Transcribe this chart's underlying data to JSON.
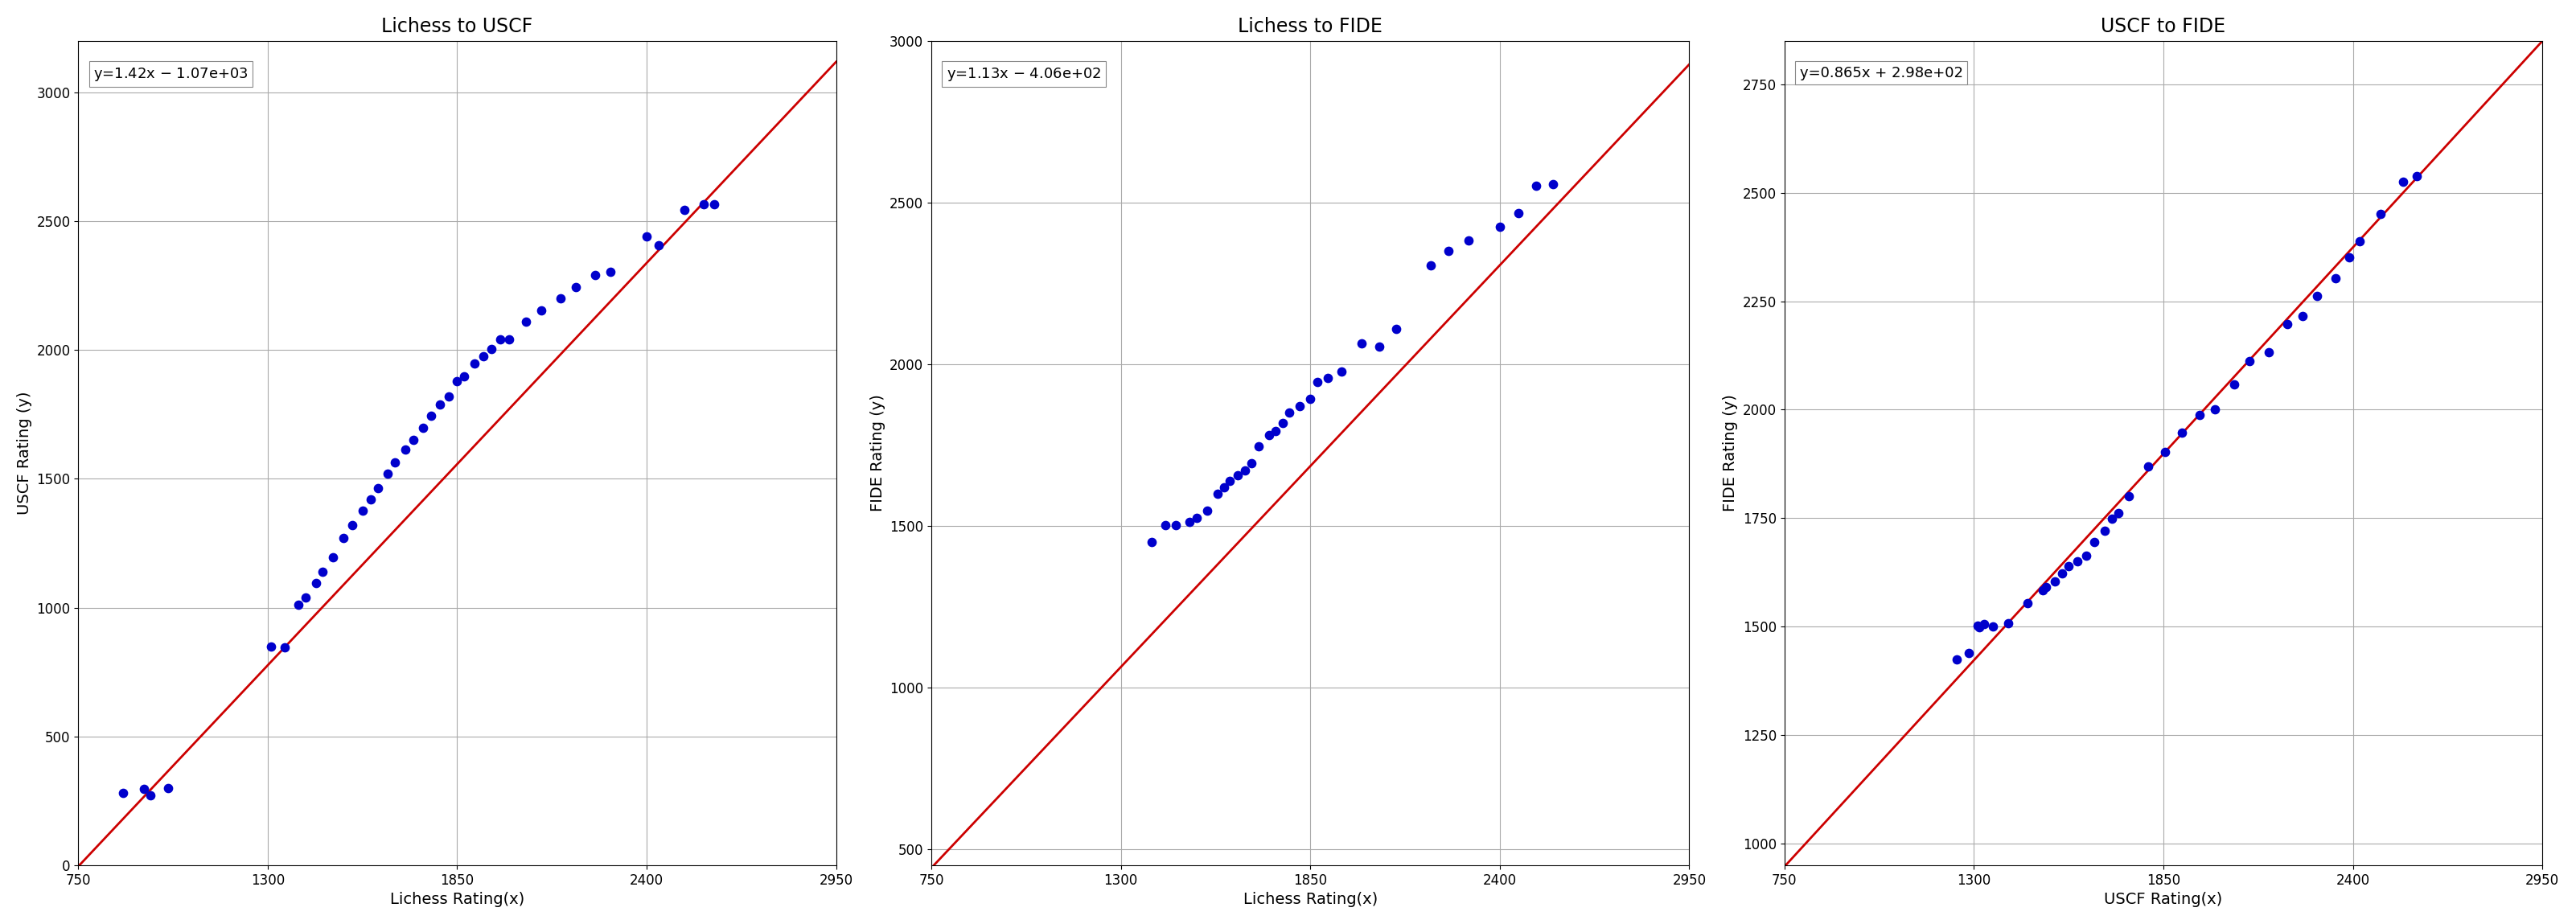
{
  "plot1": {
    "title": "Lichess to USCF",
    "xlabel": "Lichess Rating(x)",
    "ylabel": "USCF Rating (y)",
    "equation": "y=1.42x $-$ 1.07e+03",
    "slope": 1.42,
    "intercept": -1070,
    "x": [
      880,
      940,
      960,
      1010,
      1310,
      1350,
      1390,
      1410,
      1440,
      1460,
      1490,
      1520,
      1545,
      1575,
      1600,
      1620,
      1648,
      1670,
      1700,
      1722,
      1750,
      1775,
      1800,
      1825,
      1850,
      1870,
      1900,
      1925,
      1950,
      1975,
      2000,
      2050,
      2095,
      2150,
      2195,
      2250,
      2295,
      2400,
      2435,
      2510,
      2565,
      2595
    ],
    "y": [
      280,
      295,
      270,
      300,
      850,
      845,
      1010,
      1040,
      1095,
      1140,
      1195,
      1270,
      1320,
      1375,
      1420,
      1465,
      1520,
      1565,
      1615,
      1650,
      1698,
      1745,
      1790,
      1820,
      1878,
      1898,
      1948,
      1975,
      2005,
      2040,
      2040,
      2110,
      2155,
      2200,
      2245,
      2290,
      2305,
      2440,
      2408,
      2545,
      2565,
      2565
    ],
    "xlim": [
      750,
      2950
    ],
    "ylim": [
      0,
      3200
    ],
    "xticks": [
      750,
      1300,
      1850,
      2400,
      2950
    ],
    "yticks": [
      0,
      500,
      1000,
      1500,
      2000,
      2500,
      3000
    ]
  },
  "plot2": {
    "title": "Lichess to FIDE",
    "xlabel": "Lichess Rating(x)",
    "ylabel": "FIDE Rating (y)",
    "equation": "y=1.13x $-$ 4.06e+02",
    "slope": 1.13,
    "intercept": -406,
    "x": [
      1390,
      1430,
      1460,
      1500,
      1520,
      1550,
      1580,
      1600,
      1615,
      1640,
      1660,
      1680,
      1700,
      1730,
      1750,
      1770,
      1790,
      1820,
      1850,
      1870,
      1900,
      1940,
      2000,
      2050,
      2100,
      2200,
      2250,
      2310,
      2400,
      2455,
      2505,
      2555
    ],
    "y": [
      1451,
      1501,
      1503,
      1512,
      1525,
      1546,
      1599,
      1620,
      1640,
      1657,
      1672,
      1693,
      1745,
      1780,
      1793,
      1817,
      1850,
      1870,
      1892,
      1945,
      1958,
      1978,
      2065,
      2055,
      2110,
      2306,
      2351,
      2383,
      2426,
      2468,
      2553,
      2558
    ],
    "xlim": [
      750,
      2950
    ],
    "ylim": [
      450,
      3000
    ],
    "xticks": [
      750,
      1300,
      1850,
      2400,
      2950
    ],
    "yticks": [
      500,
      1000,
      1500,
      2000,
      2500,
      3000
    ]
  },
  "plot3": {
    "title": "USCF to FIDE",
    "xlabel": "USCF Rating(x)",
    "ylabel": "FIDE Rating (y)",
    "equation": "y=0.865x + 2.98e+02",
    "slope": 0.865,
    "intercept": 298,
    "x": [
      1250,
      1285,
      1310,
      1315,
      1330,
      1355,
      1400,
      1455,
      1500,
      1510,
      1535,
      1555,
      1575,
      1600,
      1625,
      1650,
      1680,
      1700,
      1720,
      1750,
      1805,
      1855,
      1905,
      1955,
      2000,
      2055,
      2100,
      2155,
      2210,
      2255,
      2295,
      2350,
      2390,
      2420,
      2480,
      2545,
      2585
    ],
    "y": [
      1424,
      1439,
      1502,
      1498,
      1506,
      1501,
      1508,
      1555,
      1583,
      1591,
      1605,
      1623,
      1639,
      1651,
      1663,
      1695,
      1721,
      1749,
      1762,
      1801,
      1869,
      1903,
      1947,
      1988,
      2001,
      2059,
      2113,
      2133,
      2198,
      2215,
      2262,
      2303,
      2351,
      2388,
      2451,
      2525,
      2539
    ],
    "xlim": [
      750,
      2950
    ],
    "ylim": [
      950,
      2850
    ],
    "xticks": [
      750,
      1300,
      1850,
      2400,
      2950
    ],
    "yticks": [
      1000,
      1250,
      1500,
      1750,
      2000,
      2250,
      2500,
      2750
    ]
  },
  "dot_color": "#0000cc",
  "line_color": "#cc0000",
  "dot_size": 55,
  "line_width": 2.0,
  "background_color": "#ffffff",
  "grid_color": "#aaaaaa",
  "fig_width": 32.03,
  "fig_height": 11.49
}
